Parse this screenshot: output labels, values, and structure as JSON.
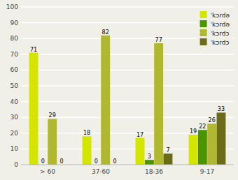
{
  "chart_data": {
    "type": "bar",
    "categories": [
      "> 60",
      "37-60",
      "18-36",
      "9-17"
    ],
    "series": [
      {
        "name": "ˈkɔrdə",
        "color": "#d4e600",
        "values": [
          71,
          18,
          17,
          19
        ]
      },
      {
        "name": "ˈkɔrdə",
        "color": "#4a9400",
        "values": [
          0,
          0,
          3,
          22
        ]
      },
      {
        "name": "ˈkɔrdɔ",
        "color": "#b0b832",
        "values": [
          29,
          82,
          77,
          26
        ]
      },
      {
        "name": "ˈkɔrdɔ",
        "color": "#6b6b1a",
        "values": [
          0,
          0,
          7,
          33
        ]
      }
    ],
    "ylim": [
      0,
      100
    ],
    "yticks": [
      0,
      10,
      20,
      30,
      40,
      50,
      60,
      70,
      80,
      90,
      100
    ],
    "grid": true,
    "legend": "upper right",
    "data_labels": true
  }
}
